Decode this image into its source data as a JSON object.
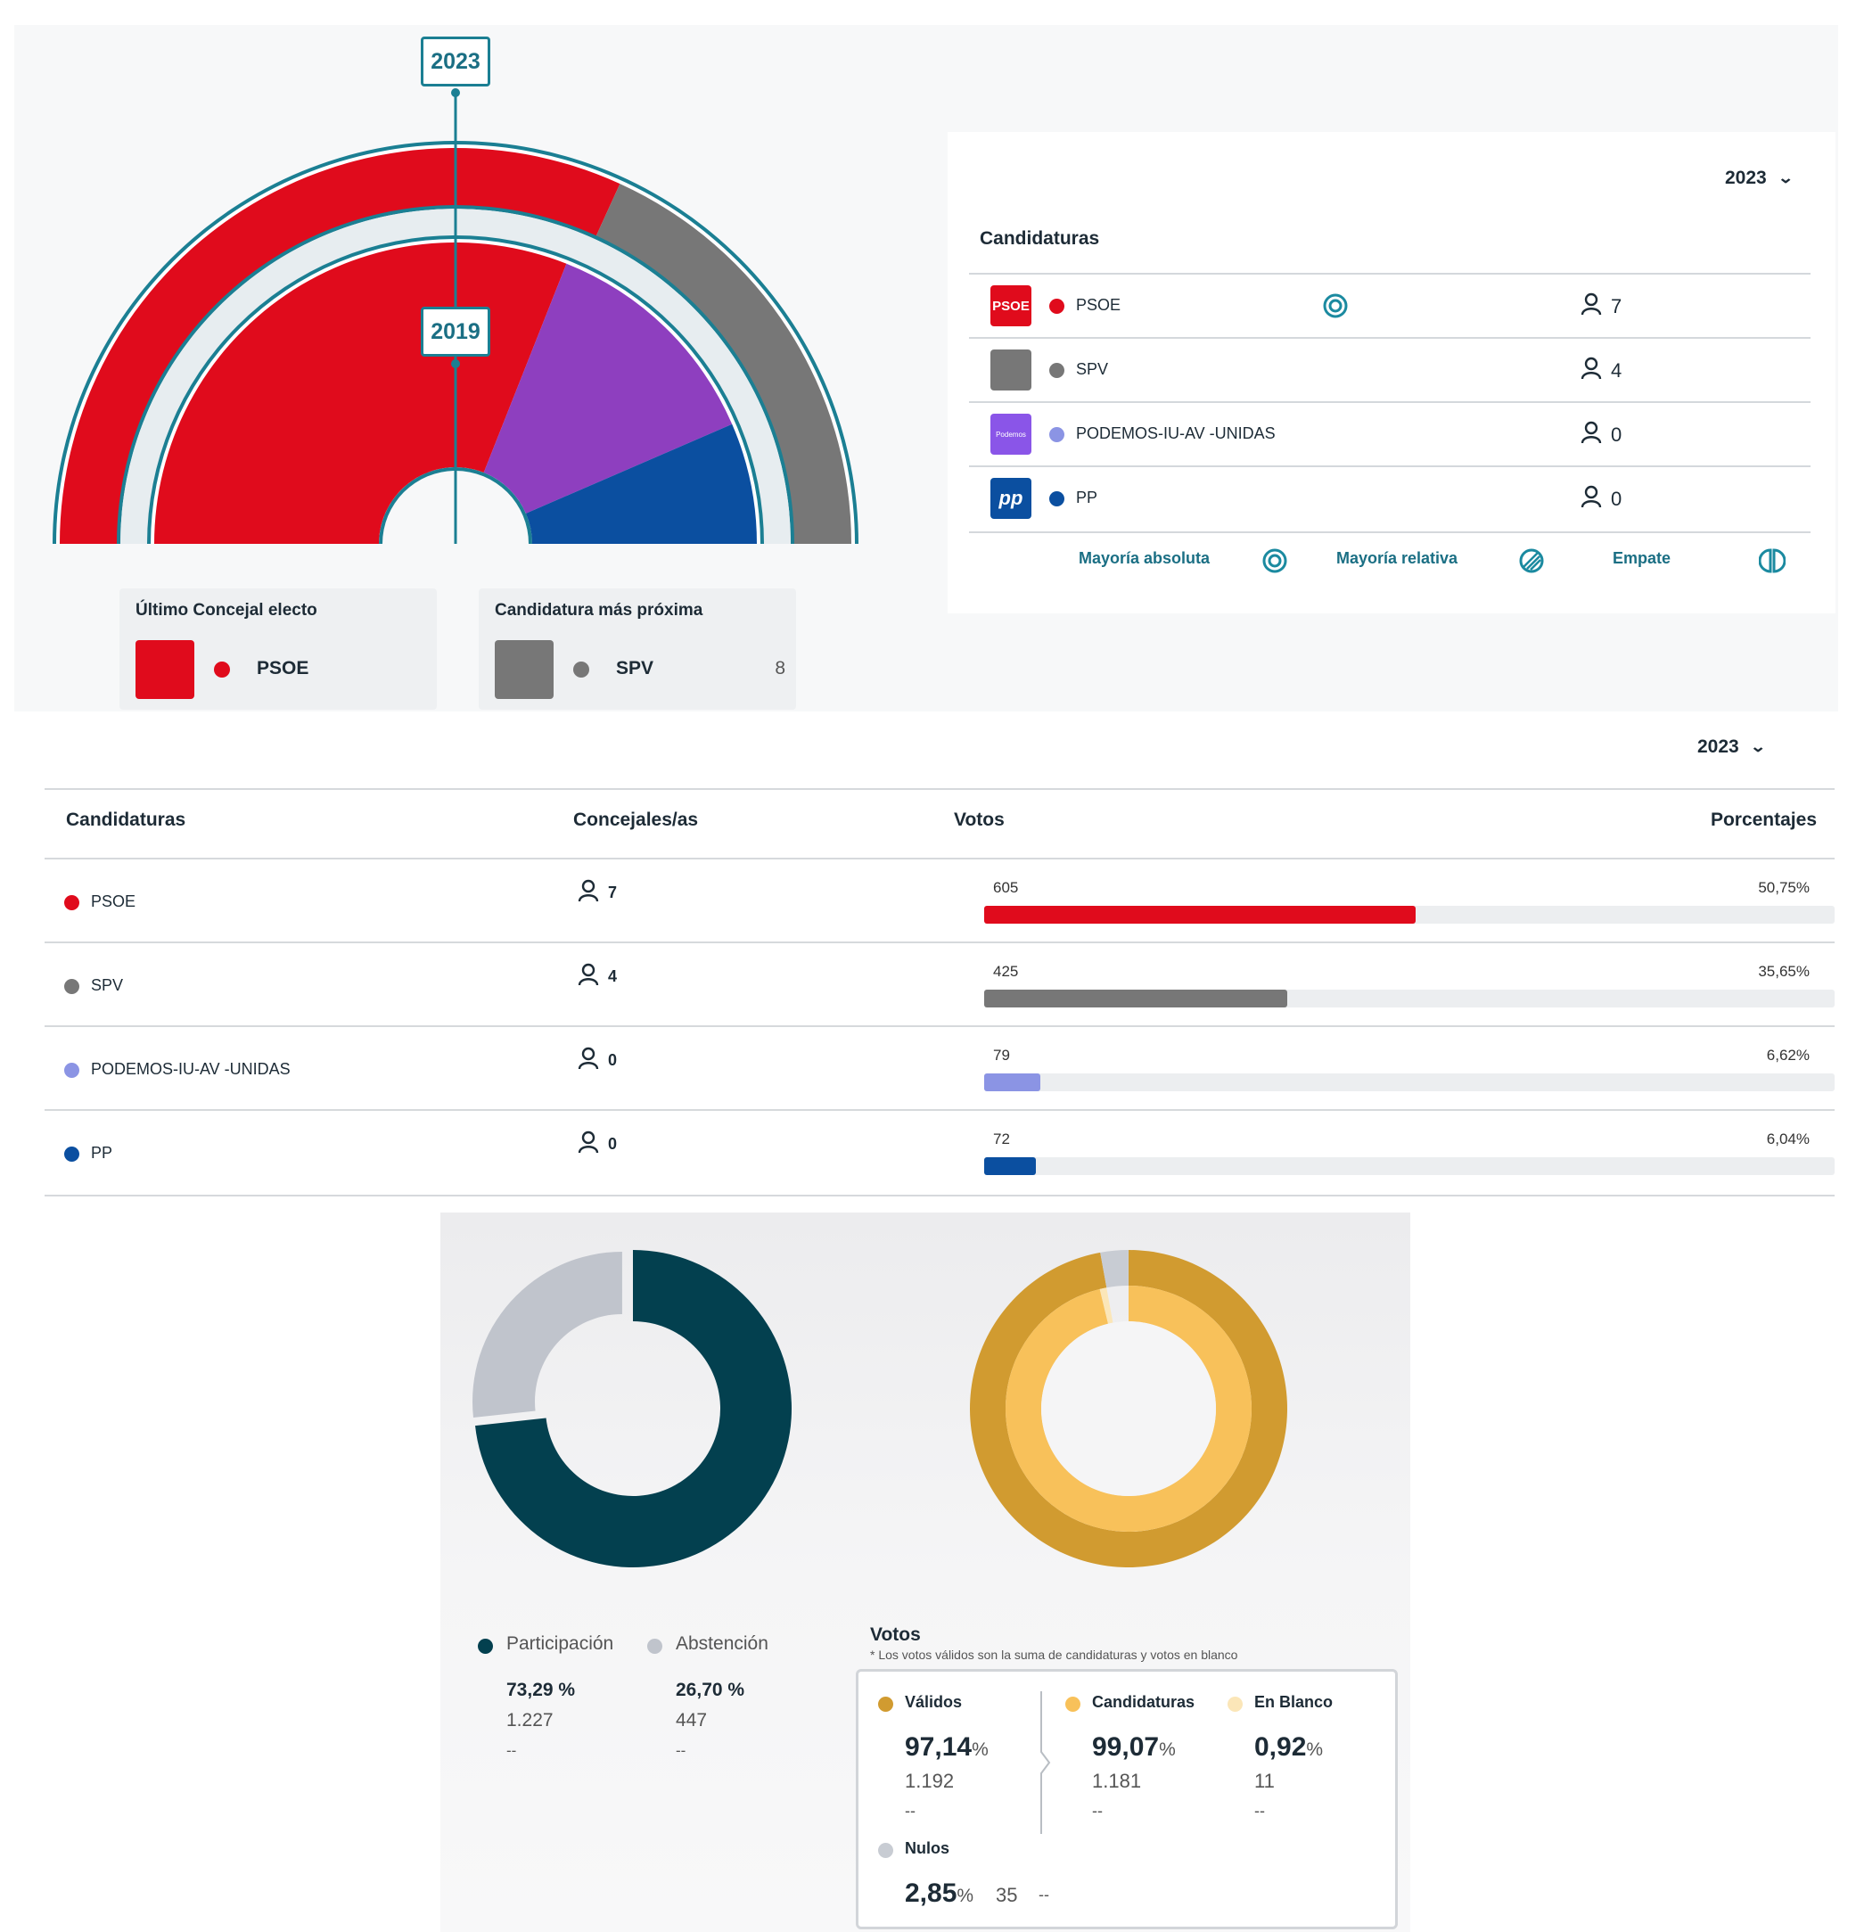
{
  "hemicycle": {
    "outer_year": "2023",
    "inner_year": "2019",
    "outer_seats": [
      {
        "party": "PSOE",
        "seats": 7,
        "color": "#e00b1c"
      },
      {
        "party": "SPV",
        "seats": 4,
        "color": "#777777"
      }
    ],
    "inner_shares": [
      {
        "color": "#e00b1c",
        "fraction": 0.62
      },
      {
        "color": "#8e3fbf",
        "fraction": 0.25
      },
      {
        "color": "#0b4fa0",
        "fraction": 0.13
      }
    ]
  },
  "last_councilor": {
    "title": "Último Concejal electo",
    "party": "PSOE",
    "color": "#e00b1c"
  },
  "next_candidacy": {
    "title": "Candidatura más próxima",
    "party": "SPV",
    "value": "8",
    "color": "#777777"
  },
  "candidacies_card": {
    "year": "2023",
    "title": "Candidaturas",
    "rows": [
      {
        "logo_text": "PSOE",
        "logo_color": "#e00b1c",
        "name": "PSOE",
        "color": "#e00b1c",
        "seats": "7",
        "majority_icon": "mayoria-absoluta-icon"
      },
      {
        "logo_text": "",
        "logo_color": "#777777",
        "name": "SPV",
        "color": "#777777",
        "seats": "4"
      },
      {
        "logo_text": "Podemos",
        "logo_color": "#8a55e8",
        "name": "PODEMOS-IU-AV -UNIDAS",
        "color": "#8b94e4",
        "seats": "0"
      },
      {
        "logo_text": "pp",
        "logo_color": "#0b4fa0",
        "name": "PP",
        "color": "#0b4fa0",
        "seats": "0"
      }
    ],
    "legend": {
      "absolute": "Mayoría absoluta",
      "relative": "Mayoría relativa",
      "tie": "Empate"
    }
  },
  "results_table": {
    "year": "2023",
    "headers": {
      "party": "Candidaturas",
      "seats": "Concejales/as",
      "votes": "Votos",
      "pct": "Porcentajes"
    },
    "rows": [
      {
        "name": "PSOE",
        "color": "#e00b1c",
        "seats": "7",
        "votes": "605",
        "pct": "50,75%",
        "bar_fraction": 0.5075
      },
      {
        "name": "SPV",
        "color": "#777777",
        "seats": "4",
        "votes": "425",
        "pct": "35,65%",
        "bar_fraction": 0.3565
      },
      {
        "name": "PODEMOS-IU-AV -UNIDAS",
        "color": "#8b94e4",
        "seats": "0",
        "votes": "79",
        "pct": "6,62%",
        "bar_fraction": 0.0662
      },
      {
        "name": "PP",
        "color": "#0b4fa0",
        "seats": "0",
        "votes": "72",
        "pct": "6,04%",
        "bar_fraction": 0.0604
      }
    ]
  },
  "turnout": {
    "participation": {
      "label": "Participación",
      "pct": "73,29 %",
      "count": "1.227",
      "extra": "--",
      "color": "#03404f",
      "fraction": 0.7329
    },
    "abstention": {
      "label": "Abstención",
      "pct": "26,70 %",
      "count": "447",
      "extra": "--",
      "color": "#c0c4cc",
      "fraction": 0.267
    }
  },
  "votes": {
    "title": "Votos",
    "note": "* Los votos válidos son la suma de candidaturas y votos en blanco",
    "valid": {
      "label": "Válidos",
      "pct": "97,14",
      "count": "1.192",
      "extra": "--",
      "color": "#d19b30",
      "fraction": 0.9714
    },
    "candidacies": {
      "label": "Candidaturas",
      "pct": "99,07",
      "count": "1.181",
      "extra": "--",
      "color": "#f8c15a",
      "fraction": 0.9907
    },
    "blank": {
      "label": "En Blanco",
      "pct": "0,92",
      "count": "11",
      "extra": "--",
      "color": "#fbe6b8",
      "fraction": 0.0092
    },
    "null": {
      "label": "Nulos",
      "pct": "2,85",
      "count": "35",
      "extra": "--",
      "color": "#c8ccd3",
      "fraction": 0.0285
    },
    "pct_unit": "%"
  }
}
